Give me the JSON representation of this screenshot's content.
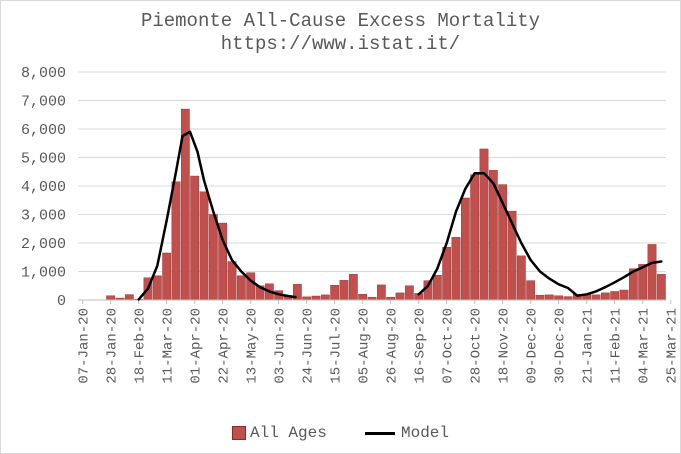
{
  "colors": {
    "bar": "#c0504d",
    "bar_edge": "#8b2a28",
    "line": "#000000",
    "grid": "#d9d9d9",
    "text": "#595959"
  },
  "chart_data": {
    "type": "bar",
    "title": "Piemonte All-Cause Excess Mortality",
    "subtitle": "https://www.istat.it/",
    "xlabel": "",
    "ylabel": "",
    "ylim": [
      0,
      8000
    ],
    "yticks": [
      0,
      1000,
      2000,
      3000,
      4000,
      5000,
      6000,
      7000,
      8000
    ],
    "ytick_labels": [
      "0",
      "1,000",
      "2,000",
      "3,000",
      "4,000",
      "5,000",
      "6,000",
      "7,000",
      "8,000"
    ],
    "grid": true,
    "legend_position": "bottom",
    "x_tick_labels": [
      "07-Jan-20",
      "28-Jan-20",
      "18-Feb-20",
      "11-Mar-20",
      "01-Apr-20",
      "22-Apr-20",
      "13-May-20",
      "03-Jun-20",
      "24-Jun-20",
      "15-Jul-20",
      "05-Aug-20",
      "26-Aug-20",
      "16-Sep-20",
      "07-Oct-20",
      "28-Oct-20",
      "18-Nov-20",
      "09-Dec-20",
      "30-Dec-20",
      "21-Jan-21",
      "11-Feb-21",
      "04-Mar-21",
      "25-Mar-21"
    ],
    "x_tick_every": 3,
    "series": [
      {
        "name": "All Ages",
        "type": "bar",
        "values": [
          10,
          10,
          10,
          150,
          70,
          190,
          30,
          780,
          850,
          1650,
          4150,
          6700,
          4350,
          3800,
          3000,
          2700,
          1350,
          850,
          960,
          500,
          570,
          330,
          120,
          550,
          110,
          140,
          180,
          520,
          690,
          900,
          200,
          100,
          530,
          100,
          250,
          500,
          230,
          680,
          870,
          1850,
          2200,
          3580,
          4400,
          5300,
          4550,
          4050,
          3120,
          1550,
          680,
          170,
          180,
          150,
          120,
          200,
          200,
          180,
          250,
          300,
          350,
          1100,
          1250,
          1950,
          900
        ]
      },
      {
        "name": "Model",
        "type": "line",
        "segments": [
          [
            [
              6,
              20
            ],
            [
              7,
              400
            ],
            [
              8,
              1200
            ],
            [
              9,
              2800
            ],
            [
              10,
              4500
            ],
            [
              10.7,
              5750
            ],
            [
              11.5,
              5900
            ],
            [
              12.3,
              5200
            ],
            [
              13,
              4200
            ],
            [
              14,
              3100
            ],
            [
              15,
              2100
            ],
            [
              16,
              1400
            ],
            [
              17,
              1000
            ],
            [
              18,
              680
            ],
            [
              19,
              450
            ],
            [
              20,
              300
            ],
            [
              21,
              200
            ],
            [
              22,
              140
            ],
            [
              22.8,
              100
            ]
          ],
          [
            [
              36,
              200
            ],
            [
              37,
              500
            ],
            [
              38,
              1100
            ],
            [
              39,
              2000
            ],
            [
              40,
              3100
            ],
            [
              41,
              3900
            ],
            [
              42,
              4450
            ],
            [
              43,
              4450
            ],
            [
              44,
              4100
            ],
            [
              45,
              3400
            ],
            [
              46,
              2700
            ],
            [
              47,
              2000
            ],
            [
              48,
              1400
            ],
            [
              49,
              1000
            ],
            [
              50,
              750
            ],
            [
              51,
              550
            ],
            [
              52,
              420
            ],
            [
              53,
              150
            ],
            [
              54,
              200
            ],
            [
              55,
              300
            ],
            [
              56,
              450
            ],
            [
              57,
              620
            ],
            [
              58,
              800
            ],
            [
              59,
              1000
            ],
            [
              60,
              1150
            ],
            [
              61,
              1300
            ],
            [
              62,
              1350
            ]
          ]
        ]
      }
    ]
  }
}
